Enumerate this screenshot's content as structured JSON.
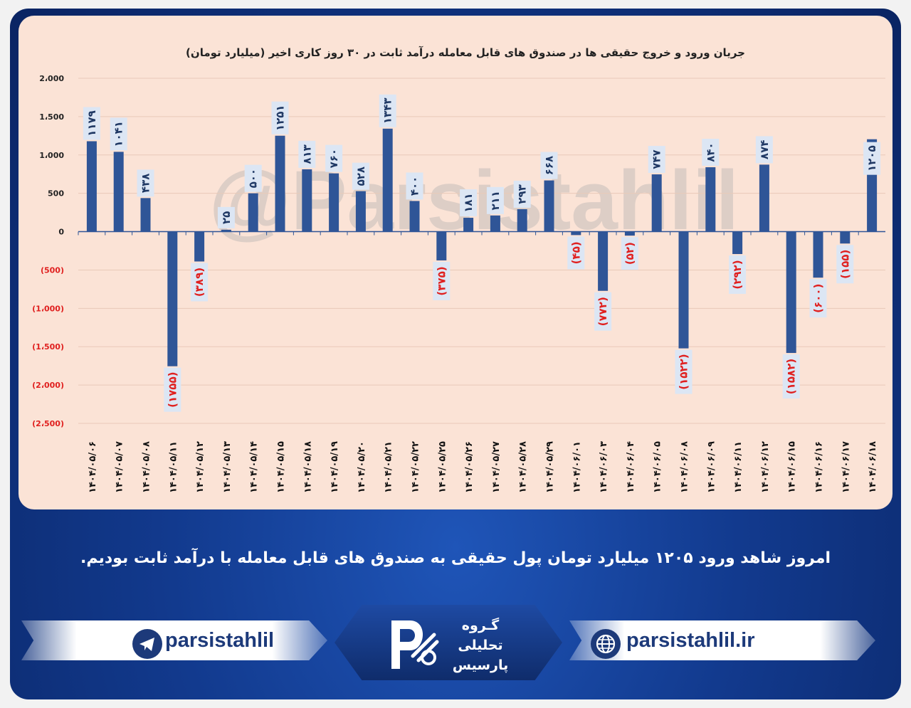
{
  "chart_data": {
    "type": "bar",
    "title": "جریان ورود و خروج حقیقی ها در صندوق های قابل معامله درآمد ثابت در ۳۰ روز کاری اخیر (میلیارد تومان)",
    "xlabel": "",
    "ylabel": "",
    "ylim": [
      -2500,
      2000
    ],
    "y_ticks": [
      2000,
      1500,
      1000,
      500,
      0,
      -500,
      -1000,
      -1500,
      -2000,
      -2500
    ],
    "y_tick_labels": [
      "2،000",
      "1،500",
      "1،000",
      "500",
      "0",
      "(500)",
      "(1،000)",
      "(1،500)",
      "(2،000)",
      "(2،500)"
    ],
    "categories": [
      "۱۴۰۴/۰۵/۰۶",
      "۱۴۰۴/۰۵/۰۷",
      "۱۴۰۴/۰۵/۰۸",
      "۱۴۰۴/۰۵/۱۱",
      "۱۴۰۴/۰۵/۱۲",
      "۱۴۰۴/۰۵/۱۳",
      "۱۴۰۴/۰۵/۱۴",
      "۱۴۰۴/۰۵/۱۵",
      "۱۴۰۴/۰۵/۱۸",
      "۱۴۰۴/۰۵/۱۹",
      "۱۴۰۴/۰۵/۲۰",
      "۱۴۰۴/۰۵/۲۱",
      "۱۴۰۴/۰۵/۲۲",
      "۱۴۰۴/۰۵/۲۵",
      "۱۴۰۴/۰۵/۲۶",
      "۱۴۰۴/۰۵/۲۷",
      "۱۴۰۴/۰۵/۲۸",
      "۱۴۰۴/۰۵/۲۹",
      "۱۴۰۴/۰۶/۰۱",
      "۱۴۰۴/۰۶/۰۳",
      "۱۴۰۴/۰۶/۰۴",
      "۱۴۰۴/۰۶/۰۵",
      "۱۴۰۴/۰۶/۰۸",
      "۱۴۰۴/۰۶/۰۹",
      "۱۴۰۴/۰۶/۱۱",
      "۱۴۰۴/۰۶/۱۲",
      "۱۴۰۴/۰۶/۱۵",
      "۱۴۰۴/۰۶/۱۶",
      "۱۴۰۴/۰۶/۱۷",
      "۱۴۰۴/۰۶/۱۸"
    ],
    "values": [
      1179,
      1041,
      438,
      -1755,
      -389,
      25,
      500,
      1251,
      813,
      760,
      528,
      1343,
      400,
      -375,
      181,
      211,
      293,
      668,
      -45,
      -772,
      -52,
      747,
      -1522,
      840,
      -292,
      874,
      -1582,
      -600,
      -155,
      1205
    ],
    "data_labels": [
      "۱۱۷۹",
      "۱۰۴۱",
      "۴۳۸",
      "(۱۷۵۵)",
      "(۳۸۹)",
      "۲۵",
      "۵۰۰",
      "۱۲۵۱",
      "۸۱۳",
      "۷۶۰",
      "۵۲۸",
      "۱۳۴۳",
      "۴۰۰",
      "(۳۷۵)",
      "۱۸۱",
      "۲۱۱",
      "۲۹۳",
      "۶۶۸",
      "(۴۵)",
      "(۷۷۲)",
      "(۵۲)",
      "۷۴۷",
      "(۱۵۲۲)",
      "۸۴۰",
      "(۲۹۲)",
      "۸۷۴",
      "(۱۵۸۲)",
      "(۶۰۰)",
      "(۱۵۵)",
      "۱۲۰۵"
    ],
    "grid": true,
    "legend": "none",
    "bar_color": "#2f5597",
    "positive_label_color": "#1f3864",
    "negative_label_color": "#e0201f",
    "label_box_color": "#dce6f4"
  },
  "watermark": "@Parsistahlil",
  "caption": "امروز شاهد ورود ۱۲۰۵ میلیارد تومان پول حقیقی به صندوق های قابل معامله با درآمد ثابت بودیم.",
  "footer": {
    "telegram_handle": "parsistahlil",
    "website": "parsistahlil.ir",
    "logo_line1": "گـروه",
    "logo_line2": "تحلیلی",
    "logo_line3": "پارسیس"
  }
}
